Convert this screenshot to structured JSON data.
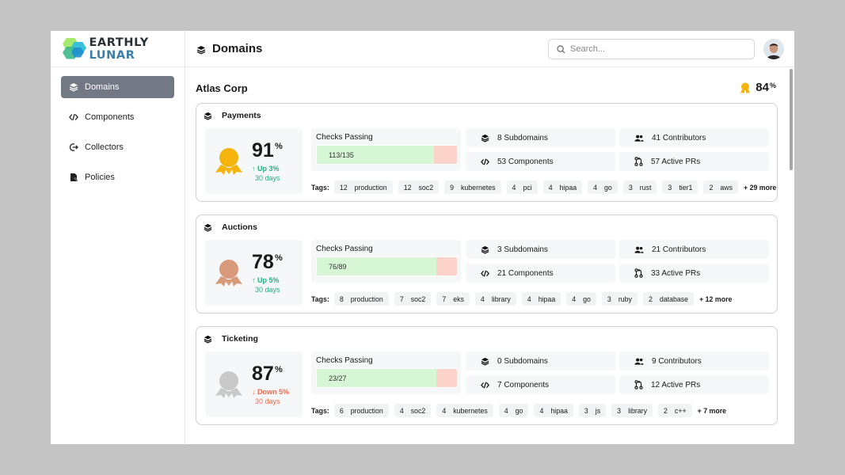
{
  "brand": {
    "name_part1": "EARTHLY",
    "name_part2": "LUNAR"
  },
  "sidebar": {
    "items": [
      {
        "label": "Domains",
        "icon": "layers-icon",
        "active": true
      },
      {
        "label": "Components",
        "icon": "code-icon",
        "active": false
      },
      {
        "label": "Collectors",
        "icon": "arrow-in-circle-icon",
        "active": false
      },
      {
        "label": "Policies",
        "icon": "document-icon",
        "active": false
      }
    ]
  },
  "header": {
    "title": "Domains",
    "search_placeholder": "Search..."
  },
  "org": {
    "name": "Atlas Corp",
    "score": "84",
    "score_unit": "%"
  },
  "labels": {
    "checks": "Checks Passing",
    "tags": "Tags:"
  },
  "domains": [
    {
      "name": "Payments",
      "score": "91",
      "unit": "%",
      "trend": "Up 3%",
      "trend_dir": "up",
      "period": "30 days",
      "medal": "gold",
      "checks": "113/135",
      "checks_fraction": 0.837,
      "subdomains": "8 Subdomains",
      "components": "53 Components",
      "contributors": "41 Contributors",
      "prs": "57 Active PRs",
      "tags": [
        {
          "count": "12",
          "name": "production"
        },
        {
          "count": "12",
          "name": "soc2"
        },
        {
          "count": "9",
          "name": "kubernetes"
        },
        {
          "count": "4",
          "name": "pci"
        },
        {
          "count": "4",
          "name": "hipaa"
        },
        {
          "count": "4",
          "name": "go"
        },
        {
          "count": "3",
          "name": "rust"
        },
        {
          "count": "3",
          "name": "tier1"
        },
        {
          "count": "2",
          "name": "aws"
        }
      ],
      "more": "+ 29 more"
    },
    {
      "name": "Auctions",
      "score": "78",
      "unit": "%",
      "trend": "Up 5%",
      "trend_dir": "up",
      "period": "30 days",
      "medal": "bronze",
      "checks": "76/89",
      "checks_fraction": 0.854,
      "subdomains": "3 Subdomains",
      "components": "21 Components",
      "contributors": "21 Contributors",
      "prs": "33 Active PRs",
      "tags": [
        {
          "count": "8",
          "name": "production"
        },
        {
          "count": "7",
          "name": "soc2"
        },
        {
          "count": "7",
          "name": "eks"
        },
        {
          "count": "4",
          "name": "library"
        },
        {
          "count": "4",
          "name": "hipaa"
        },
        {
          "count": "4",
          "name": "go"
        },
        {
          "count": "3",
          "name": "ruby"
        },
        {
          "count": "2",
          "name": "database"
        }
      ],
      "more": "+ 12 more"
    },
    {
      "name": "Ticketing",
      "score": "87",
      "unit": "%",
      "trend": "Down 5%",
      "trend_dir": "down",
      "period": "30 days",
      "medal": "silver",
      "checks": "23/27",
      "checks_fraction": 0.852,
      "subdomains": "0 Subdomains",
      "components": "7 Components",
      "contributors": "9 Contributors",
      "prs": "12 Active PRs",
      "tags": [
        {
          "count": "6",
          "name": "production"
        },
        {
          "count": "4",
          "name": "soc2"
        },
        {
          "count": "4",
          "name": "kubernetes"
        },
        {
          "count": "4",
          "name": "go"
        },
        {
          "count": "4",
          "name": "hipaa"
        },
        {
          "count": "3",
          "name": "js"
        },
        {
          "count": "3",
          "name": "library"
        },
        {
          "count": "2",
          "name": "c++"
        }
      ],
      "more": "+ 7 more"
    }
  ],
  "colors": {
    "gold": "#f5b40c",
    "bronze": "#d99a7c",
    "silver": "#c9c9c9",
    "up": "#22b07d",
    "down": "#f26a4b",
    "pass": "#d7f6d6",
    "fail": "#fcd3cb",
    "active_nav": "#737984"
  }
}
